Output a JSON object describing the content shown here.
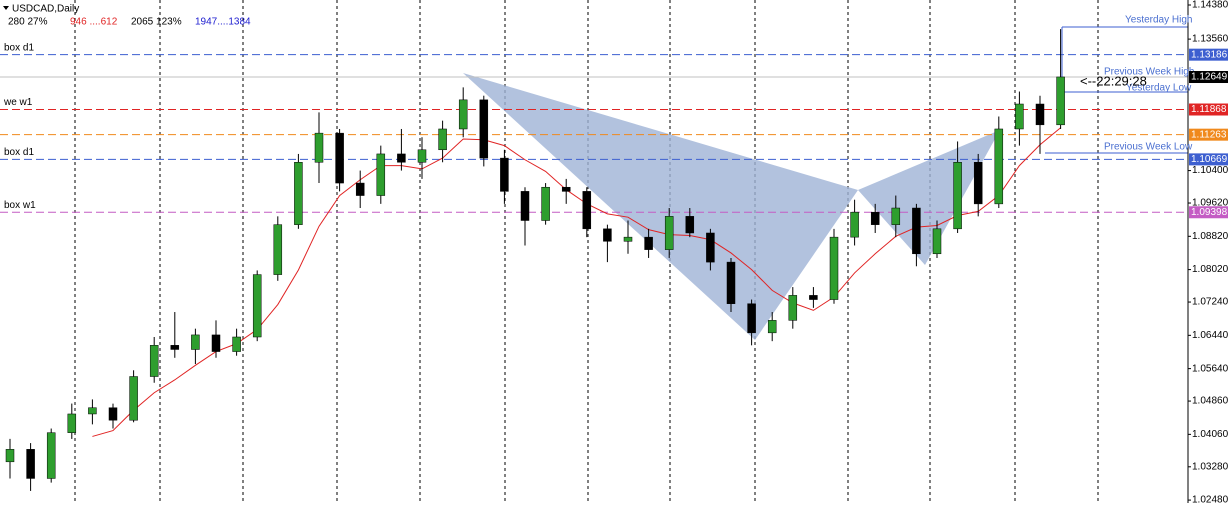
{
  "chart_data": {
    "type": "candlestick",
    "title": "USDCAD,Daily",
    "info": [
      "280  27%",
      "946 ....612",
      "2065  123%",
      "1947....1384"
    ],
    "ylim": [
      1.0241,
      1.145
    ],
    "yticks": [
      {
        "value": 1.1438,
        "label": "1.14380"
      },
      {
        "value": 1.1356,
        "label": "1.13560"
      },
      {
        "value": 1.104,
        "label": "1.10400"
      },
      {
        "value": 1.0962,
        "label": "1.09620"
      },
      {
        "value": 1.0882,
        "label": "1.08820"
      },
      {
        "value": 1.0802,
        "label": "1.08020"
      },
      {
        "value": 1.0724,
        "label": "1.07240"
      },
      {
        "value": 1.0644,
        "label": "1.06440"
      },
      {
        "value": 1.0564,
        "label": "1.05640"
      },
      {
        "value": 1.0486,
        "label": "1.04860"
      },
      {
        "value": 1.0406,
        "label": "1.04060"
      },
      {
        "value": 1.0328,
        "label": "1.03280"
      },
      {
        "value": 1.0248,
        "label": "1.02480"
      }
    ],
    "candles": [
      [
        1.034,
        1.0395,
        1.03,
        1.037
      ],
      [
        1.037,
        1.0385,
        1.027,
        1.03
      ],
      [
        1.03,
        1.042,
        1.029,
        1.041
      ],
      [
        1.041,
        1.048,
        1.0395,
        1.0455
      ],
      [
        1.0455,
        1.049,
        1.043,
        1.047
      ],
      [
        1.047,
        1.048,
        1.042,
        1.044
      ],
      [
        1.044,
        1.056,
        1.0435,
        1.0545
      ],
      [
        1.0545,
        1.064,
        1.053,
        1.062
      ],
      [
        1.062,
        1.07,
        1.059,
        1.061
      ],
      [
        1.061,
        1.066,
        1.0575,
        1.0645
      ],
      [
        1.0645,
        1.068,
        1.059,
        1.0605
      ],
      [
        1.0605,
        1.066,
        1.0595,
        1.064
      ],
      [
        1.064,
        1.08,
        1.063,
        1.079
      ],
      [
        1.079,
        1.093,
        1.0775,
        1.091
      ],
      [
        1.091,
        1.108,
        1.09,
        1.106
      ],
      [
        1.106,
        1.118,
        1.101,
        1.113
      ],
      [
        1.113,
        1.114,
        1.099,
        1.101
      ],
      [
        1.101,
        1.104,
        1.095,
        1.098
      ],
      [
        1.098,
        1.11,
        1.096,
        1.108
      ],
      [
        1.108,
        1.114,
        1.104,
        1.106
      ],
      [
        1.106,
        1.112,
        1.102,
        1.109
      ],
      [
        1.109,
        1.116,
        1.106,
        1.114
      ],
      [
        1.114,
        1.124,
        1.112,
        1.121
      ],
      [
        1.121,
        1.122,
        1.105,
        1.107
      ],
      [
        1.107,
        1.109,
        1.096,
        1.099
      ],
      [
        1.099,
        1.1,
        1.086,
        1.092
      ],
      [
        1.092,
        1.101,
        1.091,
        1.1
      ],
      [
        1.1,
        1.102,
        1.096,
        1.099
      ],
      [
        1.099,
        1.1,
        1.088,
        1.09
      ],
      [
        1.09,
        1.091,
        1.082,
        1.087
      ],
      [
        1.087,
        1.092,
        1.084,
        1.088
      ],
      [
        1.088,
        1.09,
        1.083,
        1.085
      ],
      [
        1.085,
        1.095,
        1.083,
        1.093
      ],
      [
        1.093,
        1.095,
        1.088,
        1.089
      ],
      [
        1.089,
        1.09,
        1.08,
        1.082
      ],
      [
        1.082,
        1.083,
        1.07,
        1.072
      ],
      [
        1.072,
        1.073,
        1.062,
        1.065
      ],
      [
        1.065,
        1.07,
        1.063,
        1.068
      ],
      [
        1.068,
        1.076,
        1.066,
        1.074
      ],
      [
        1.074,
        1.076,
        1.071,
        1.073
      ],
      [
        1.073,
        1.09,
        1.072,
        1.088
      ],
      [
        1.088,
        1.097,
        1.086,
        1.094
      ],
      [
        1.094,
        1.096,
        1.089,
        1.091
      ],
      [
        1.091,
        1.098,
        1.088,
        1.095
      ],
      [
        1.095,
        1.096,
        1.081,
        1.084
      ],
      [
        1.084,
        1.092,
        1.083,
        1.09
      ],
      [
        1.09,
        1.111,
        1.089,
        1.106
      ],
      [
        1.106,
        1.108,
        1.093,
        1.096
      ],
      [
        1.096,
        1.117,
        1.095,
        1.114
      ],
      [
        1.114,
        1.123,
        1.11,
        1.12
      ],
      [
        1.12,
        1.122,
        1.108,
        1.115
      ],
      [
        1.115,
        1.138,
        1.114,
        1.1265
      ]
    ],
    "levels": [
      {
        "name": "box d1",
        "value": 1.13186,
        "color": "#3d5fd0"
      },
      {
        "value": 1.12649,
        "color": "#000000"
      },
      {
        "name": "we  w1",
        "value": 1.11868,
        "color": "#e02424"
      },
      {
        "value": 1.11263,
        "color": "#f0891c"
      },
      {
        "name": "box d1",
        "value": 1.10669,
        "color": "#3d5fd0"
      },
      {
        "name": "box w1",
        "value": 1.09398,
        "color": "#c45cc4"
      }
    ],
    "annotations": [
      "Yesterday High",
      "Previous Week High",
      "Yesterday Low",
      "Previous Week Low"
    ],
    "timer": "<--22:29:28",
    "colors": {
      "up": "#2e9e2e",
      "down": "#000000"
    }
  }
}
